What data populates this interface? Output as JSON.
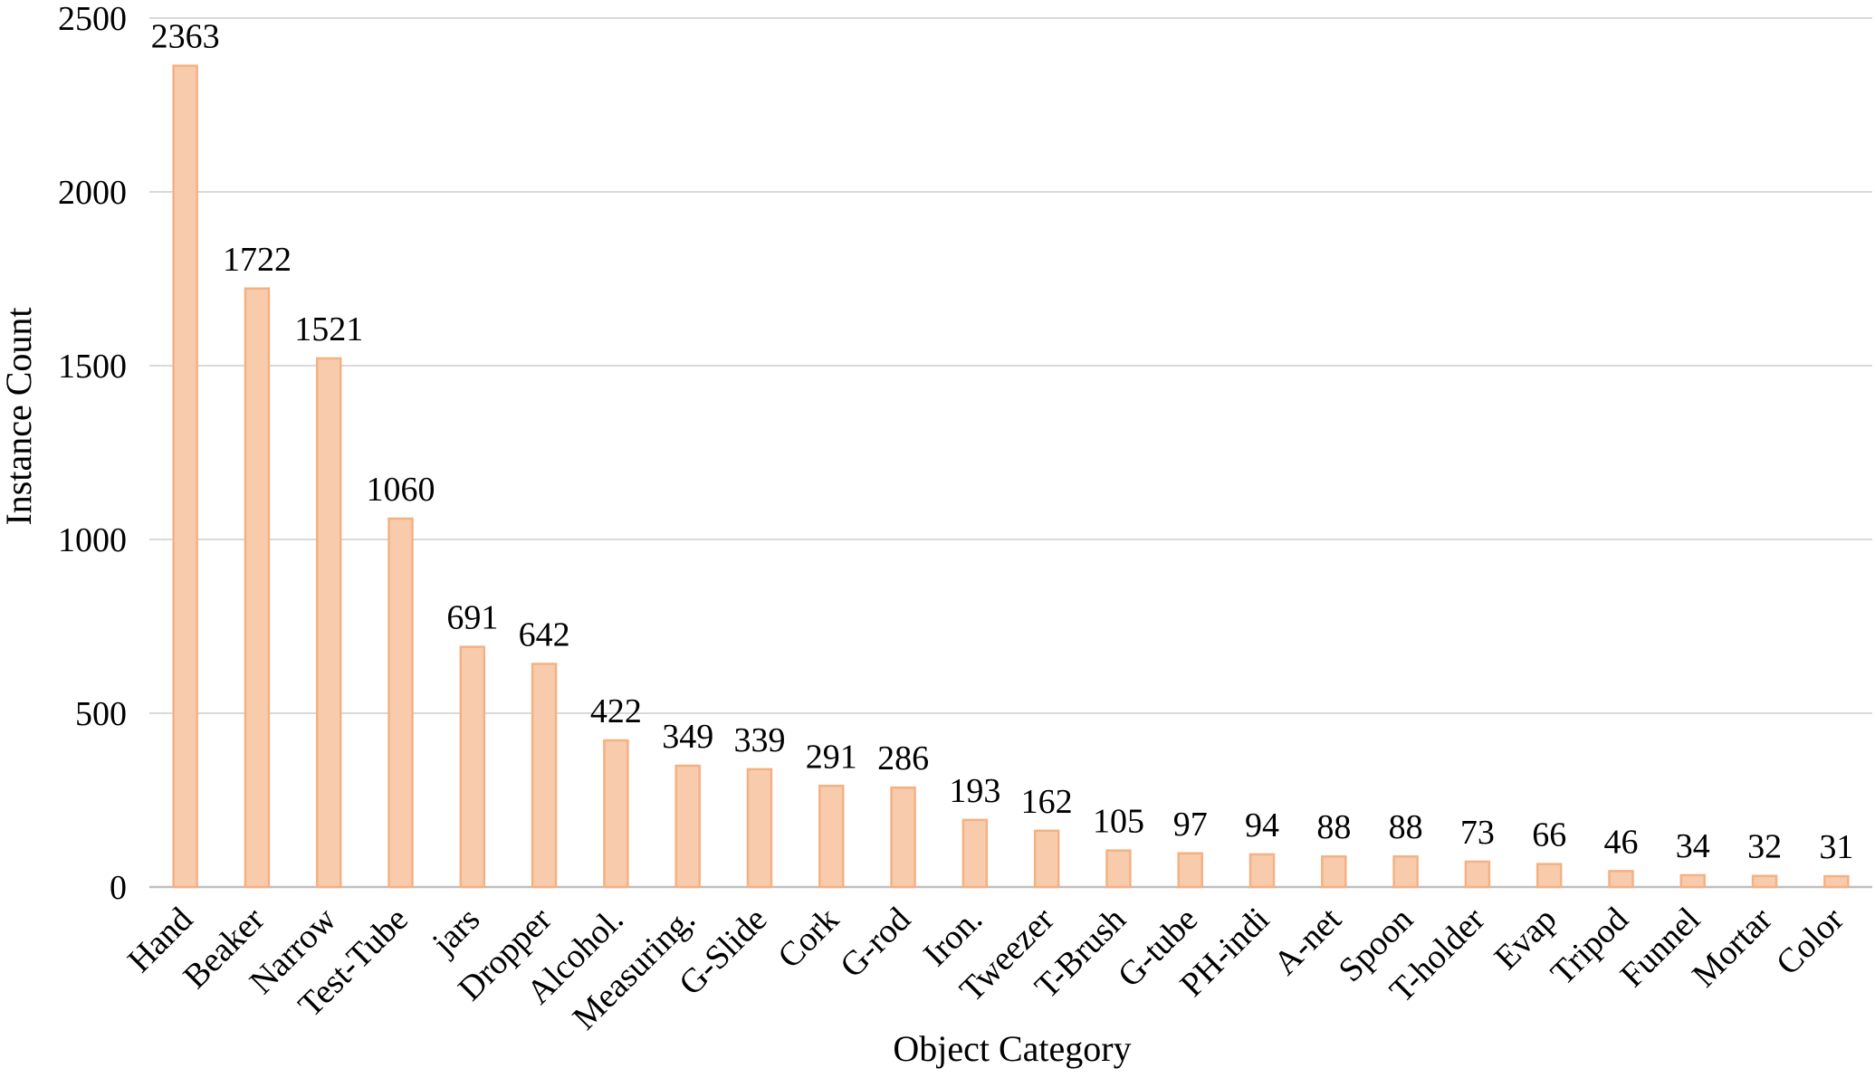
{
  "chart_data": {
    "type": "bar",
    "title": "",
    "xlabel": "Object Category",
    "ylabel": "Instance Count",
    "ylim": [
      0,
      2500
    ],
    "yticks": [
      0,
      500,
      1000,
      1500,
      2000,
      2500
    ],
    "grid": true,
    "legend": "none",
    "categories": [
      "Hand",
      "Beaker",
      "Narrow",
      "Test-Tube",
      "jars",
      "Dropper",
      "Alcohol.",
      "Measuring.",
      "G-Slide",
      "Cork",
      "G-rod",
      "Iron.",
      "Tweezer",
      "T-Brush",
      "G-tube",
      "PH-indi",
      "A-net",
      "Spoon",
      "T-holder",
      "Evap",
      "Tripod",
      "Funnel",
      "Mortar",
      "Color"
    ],
    "values": [
      2363,
      1722,
      1521,
      1060,
      691,
      642,
      422,
      349,
      339,
      291,
      286,
      193,
      162,
      105,
      97,
      94,
      88,
      88,
      73,
      66,
      46,
      34,
      32,
      31
    ],
    "colors": {
      "bar_fill": "#f8cbad",
      "bar_stroke": "#f4b183",
      "grid": "#d9d9d9",
      "axis": "#bfbfbf"
    }
  }
}
